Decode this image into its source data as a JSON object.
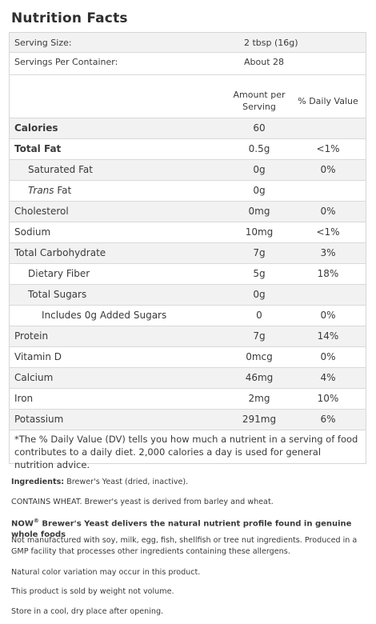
{
  "title": "Nutrition Facts",
  "serving": {
    "size_label": "Serving Size:",
    "size_value": "2 tbsp (16g)",
    "per_container_label": "Servings Per Container:",
    "per_container_value": "About 28"
  },
  "columns": {
    "amount_line1": "Amount per",
    "amount_line2": "Serving",
    "dv": "% Daily Value"
  },
  "rows": [
    {
      "name": "Calories",
      "amount": "60",
      "dv": ""
    },
    {
      "name": "Total Fat",
      "amount": "0.5g",
      "dv": "<1%"
    },
    {
      "name": "Saturated Fat",
      "amount": "0g",
      "dv": "0%"
    },
    {
      "name_italic": "Trans",
      "name": " Fat",
      "amount": "0g",
      "dv": ""
    },
    {
      "name": "Cholesterol",
      "amount": "0mg",
      "dv": "0%"
    },
    {
      "name": "Sodium",
      "amount": "10mg",
      "dv": "<1%"
    },
    {
      "name": "Total Carbohydrate",
      "amount": "7g",
      "dv": "3%"
    },
    {
      "name": "Dietary Fiber",
      "amount": "5g",
      "dv": "18%"
    },
    {
      "name": "Total Sugars",
      "amount": "0g",
      "dv": ""
    },
    {
      "name": "Includes 0g Added Sugars",
      "amount": "0",
      "dv": "0%"
    },
    {
      "name": "Protein",
      "amount": "7g",
      "dv": "14%"
    },
    {
      "name": "Vitamin D",
      "amount": "0mcg",
      "dv": "0%"
    },
    {
      "name": "Calcium",
      "amount": "46mg",
      "dv": "4%"
    },
    {
      "name": "Iron",
      "amount": "2mg",
      "dv": "10%"
    },
    {
      "name": "Potassium",
      "amount": "291mg",
      "dv": "6%"
    }
  ],
  "footnote": "*The % Daily Value (DV) tells you how much a nutrient in a serving of food contributes to a daily diet. 2,000 calories a day is used for general nutrition advice.",
  "info": {
    "ingredients_label": "Ingredients:",
    "ingredients_text": " Brewer's Yeast (dried, inactive).",
    "contains": "CONTAINS WHEAT. Brewer's yeast is derived from barley and wheat.",
    "brand": "NOW",
    "brand_reg": "®",
    "brand_claim": " Brewer's Yeast delivers the natural nutrient profile found in genuine whole foods",
    "allergens": "Not manufactured with soy, milk, egg, fish, shellfish or tree nut ingredients. Produced in a GMP facility that processes other ingredients containing these allergens.",
    "color_note": "Natural color variation may occur in this product.",
    "weight_note": "This product is sold by weight not volume.",
    "storage": "Store in a cool, dry place after opening."
  }
}
